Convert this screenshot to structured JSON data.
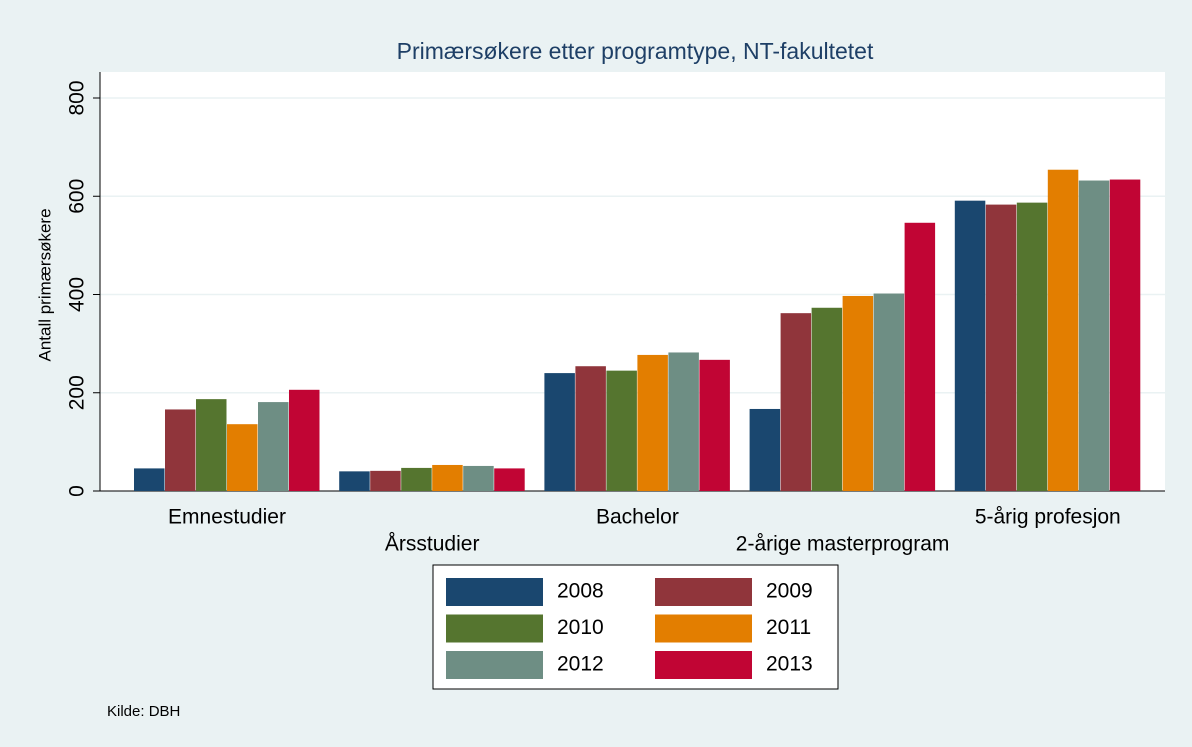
{
  "chart_data": {
    "type": "bar",
    "title": "Primærsøkere etter programtype, NT-fakultetet",
    "y_label": "Antall primærsøkere",
    "source": "Kilde: DBH",
    "categories": [
      "Emnestudier",
      "Årsstudier",
      "Bachelor",
      "2-årige masterprogram",
      "5-årig profesjon"
    ],
    "series": [
      {
        "name": "2008",
        "color": "#1a476f",
        "values": [
          46,
          40,
          240,
          167,
          591
        ]
      },
      {
        "name": "2009",
        "color": "#90353b",
        "values": [
          166,
          41,
          254,
          362,
          583
        ]
      },
      {
        "name": "2010",
        "color": "#55752f",
        "values": [
          187,
          47,
          245,
          373,
          587
        ]
      },
      {
        "name": "2011",
        "color": "#e37e00",
        "values": [
          136,
          53,
          277,
          397,
          654
        ]
      },
      {
        "name": "2012",
        "color": "#6e8e84",
        "values": [
          181,
          51,
          282,
          402,
          632
        ]
      },
      {
        "name": "2013",
        "color": "#c10534",
        "values": [
          206,
          46,
          267,
          546,
          634
        ]
      }
    ],
    "ylim": [
      0,
      800
    ],
    "yticks": [
      0,
      200,
      400,
      600,
      800
    ],
    "grid": true
  }
}
